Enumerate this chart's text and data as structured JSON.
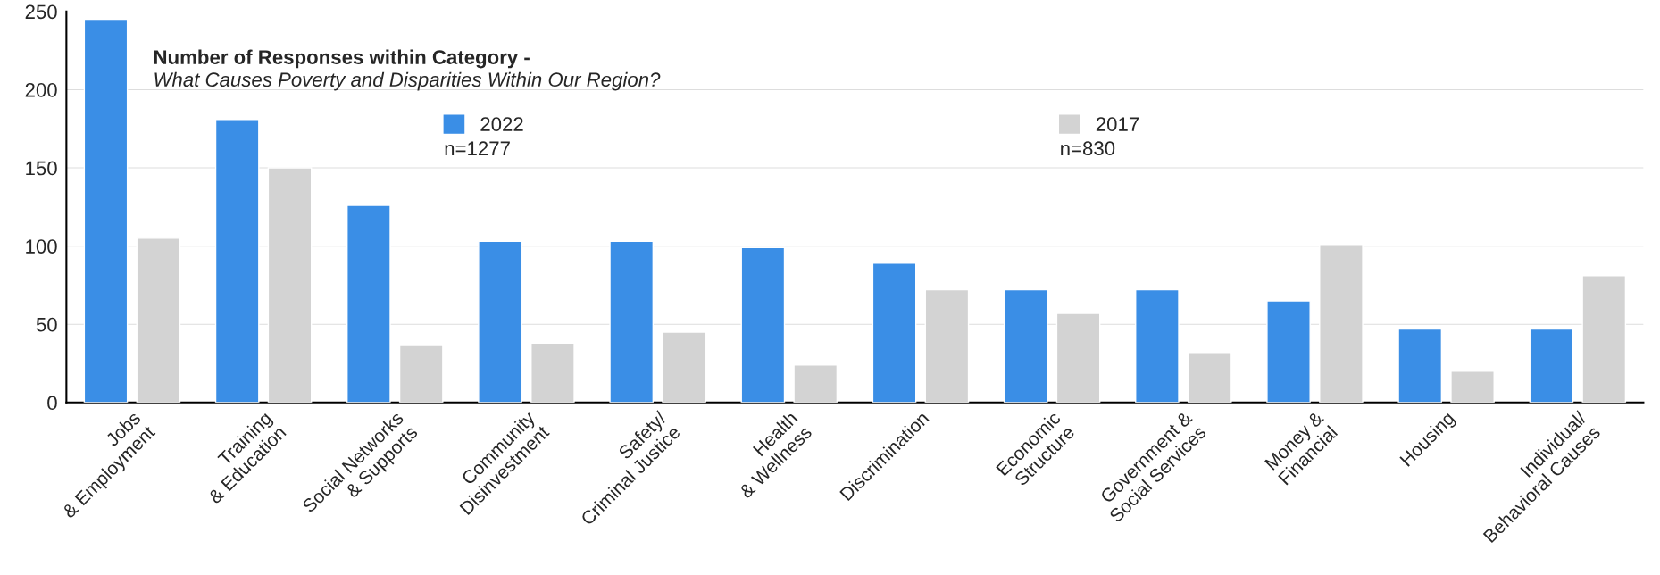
{
  "chart_data": {
    "type": "bar",
    "title": "Number of Responses within Category -",
    "subtitle": "What Causes Poverty and Disparities Within Our Region?",
    "categories": [
      "Jobs\n& Employment",
      "Training\n& Education",
      "Social Networks\n& Supports",
      "Community\nDisinvestment",
      "Safety/\nCriminal Justice",
      "Health\n& Wellness",
      "Discrimination",
      "Economic\nStructure",
      "Government &\nSocial Services",
      "Money &\nFinancial",
      "Housing",
      "Individual/\nBehavioral Causes"
    ],
    "series": [
      {
        "name": "2022",
        "color": "#3a8ee6",
        "values": [
          245,
          181,
          126,
          103,
          103,
          99,
          89,
          72,
          72,
          65,
          47,
          47
        ]
      },
      {
        "name": "2017",
        "color": "#d3d3d3",
        "values": [
          105,
          150,
          37,
          38,
          45,
          24,
          72,
          57,
          32,
          101,
          20,
          81
        ]
      }
    ],
    "annotations": [
      "n=1277",
      "n=830"
    ],
    "ylim": [
      0,
      250
    ],
    "yticks": [
      0,
      50,
      100,
      150,
      200,
      250
    ],
    "grid": "y",
    "legend": "top"
  }
}
